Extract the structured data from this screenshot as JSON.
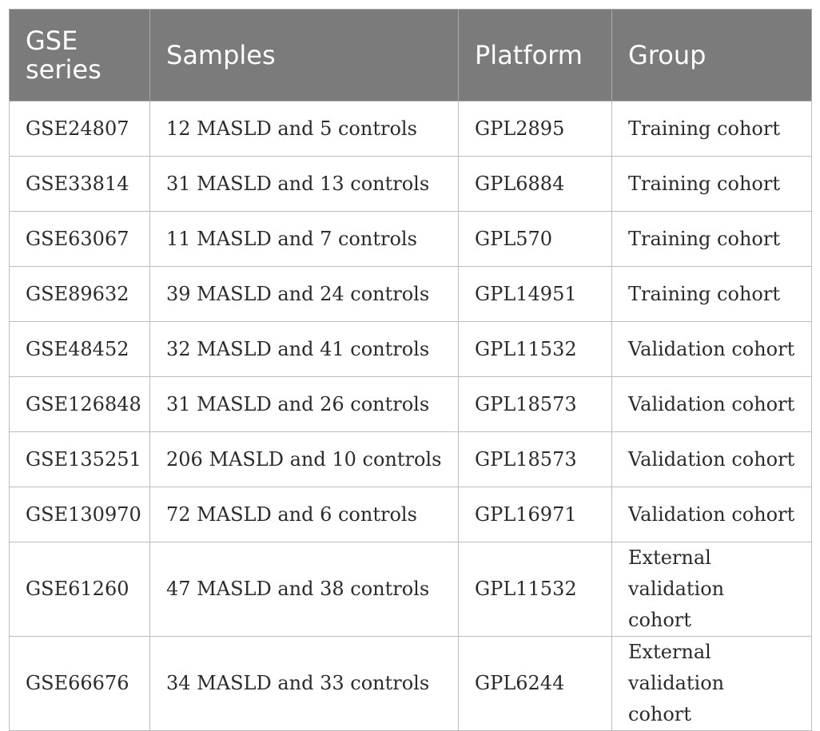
{
  "table": {
    "headers": [
      "GSE series",
      "Samples",
      "Platform",
      "Group"
    ],
    "rows": [
      {
        "series": "GSE24807",
        "samples": "12 MASLD and 5 controls",
        "platform": "GPL2895",
        "group": "Training cohort"
      },
      {
        "series": "GSE33814",
        "samples": "31 MASLD and 13 controls",
        "platform": "GPL6884",
        "group": "Training cohort"
      },
      {
        "series": "GSE63067",
        "samples": "11 MASLD and 7 controls",
        "platform": "GPL570",
        "group": "Training cohort"
      },
      {
        "series": "GSE89632",
        "samples": "39 MASLD and 24 controls",
        "platform": "GPL14951",
        "group": "Training cohort"
      },
      {
        "series": "GSE48452",
        "samples": "32 MASLD and 41 controls",
        "platform": "GPL11532",
        "group": "Validation cohort"
      },
      {
        "series": "GSE126848",
        "samples": "31 MASLD and 26 controls",
        "platform": "GPL18573",
        "group": "Validation cohort"
      },
      {
        "series": "GSE135251",
        "samples": "206 MASLD and 10 controls",
        "platform": "GPL18573",
        "group": "Validation cohort"
      },
      {
        "series": "GSE130970",
        "samples": "72 MASLD and 6 controls",
        "platform": "GPL16971",
        "group": "Validation cohort"
      },
      {
        "series": "GSE61260",
        "samples": "47 MASLD and 38 controls",
        "platform": "GPL11532",
        "group": "External validation cohort"
      },
      {
        "series": "GSE66676",
        "samples": "34 MASLD and 33 controls",
        "platform": "GPL6244",
        "group": "External validation cohort"
      }
    ]
  }
}
